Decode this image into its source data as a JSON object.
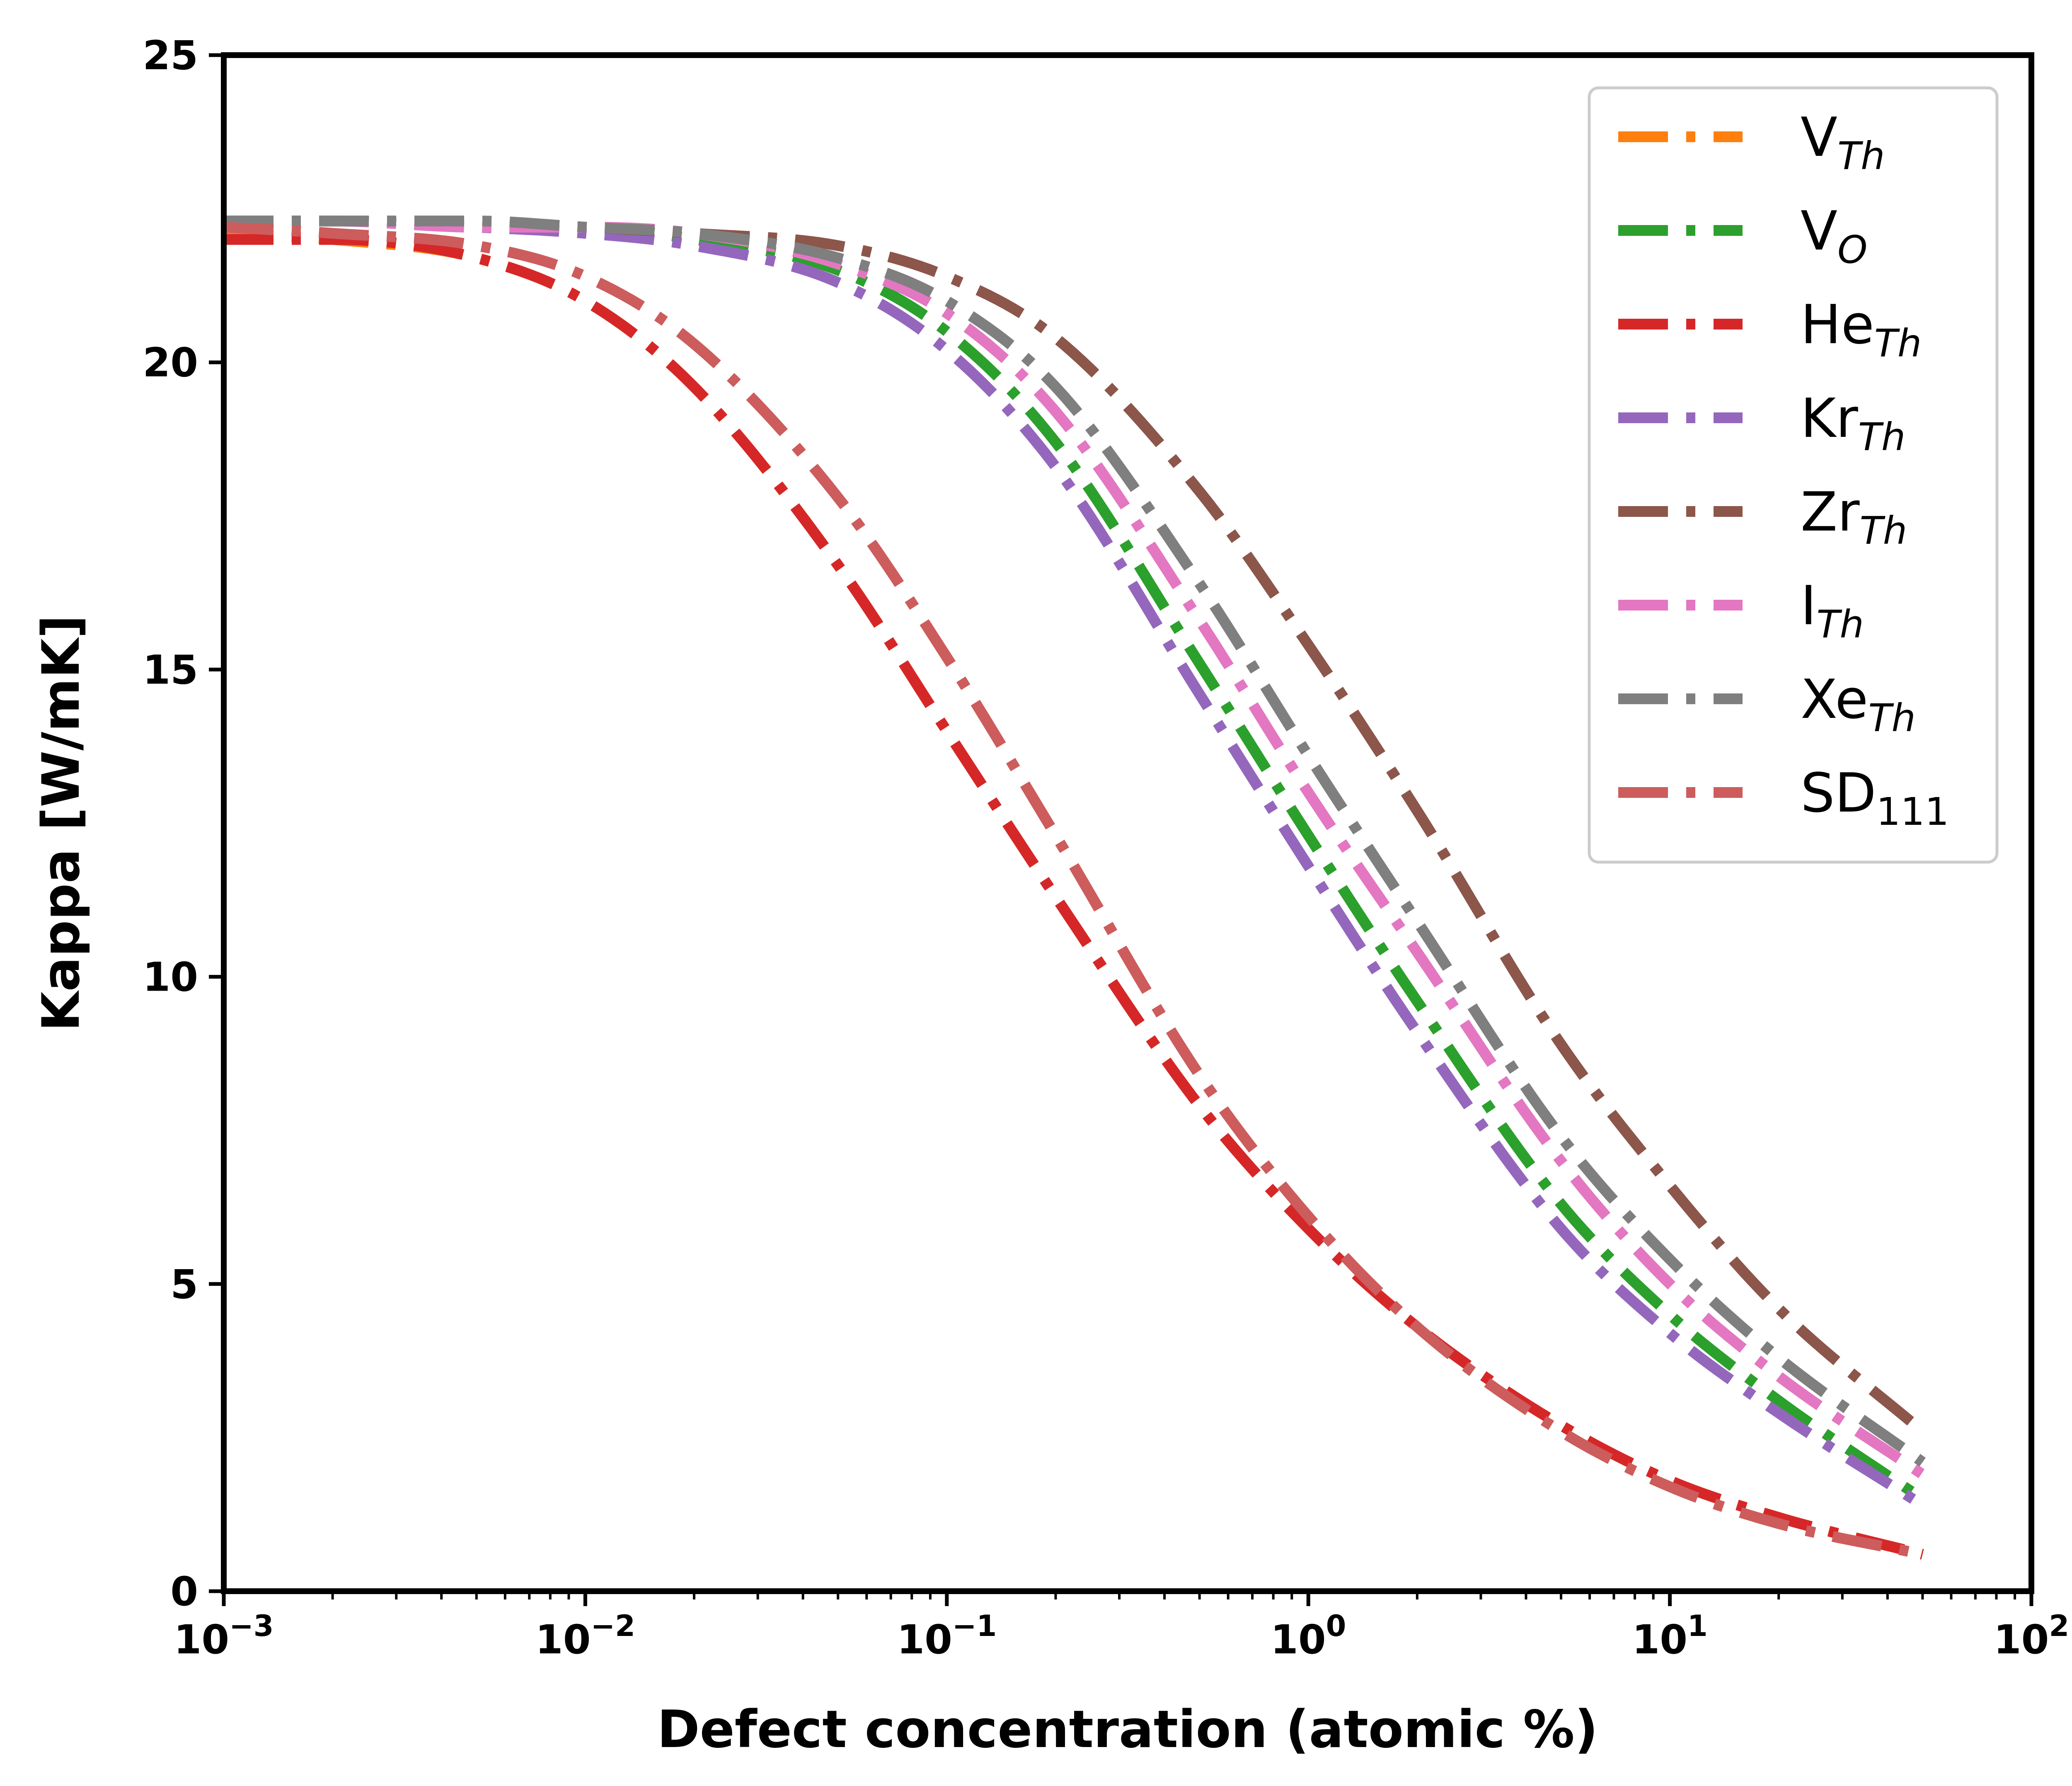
{
  "chart_data": {
    "type": "line",
    "xlabel": "Defect concentration (atomic %)",
    "ylabel": "Kappa [W/mK]",
    "xscale": "log",
    "xlim": [
      0.001,
      100
    ],
    "ylim": [
      0,
      25
    ],
    "x_ticks": [
      {
        "value": 0.001,
        "base": "10",
        "exp": "−3"
      },
      {
        "value": 0.01,
        "base": "10",
        "exp": "−2"
      },
      {
        "value": 0.1,
        "base": "10",
        "exp": "−1"
      },
      {
        "value": 1,
        "base": "10",
        "exp": "0"
      },
      {
        "value": 10,
        "base": "10",
        "exp": "1"
      },
      {
        "value": 100,
        "base": "10",
        "exp": "2"
      }
    ],
    "y_ticks": [
      {
        "value": 0,
        "label": "0"
      },
      {
        "value": 5,
        "label": "5"
      },
      {
        "value": 10,
        "label": "10"
      },
      {
        "value": 15,
        "label": "15"
      },
      {
        "value": 20,
        "label": "20"
      },
      {
        "value": 25,
        "label": "25"
      }
    ],
    "grid": false,
    "legend_position": "top-right",
    "line_style": "dash-dot",
    "x": [
      0.001,
      0.002,
      0.005,
      0.01,
      0.02,
      0.05,
      0.1,
      0.2,
      0.5,
      1,
      2,
      5,
      10,
      20,
      50
    ],
    "series": [
      {
        "name": "V",
        "sub": "Th",
        "sub_italic": true,
        "color": "#ff7f0e",
        "values": [
          22.1,
          22.0,
          21.7,
          21.0,
          19.6,
          16.7,
          14.0,
          11.3,
          7.9,
          5.9,
          4.3,
          2.7,
          1.8,
          1.2,
          0.6
        ]
      },
      {
        "name": "V",
        "sub": "O",
        "sub_italic": true,
        "color": "#2ca02c",
        "values": [
          22.3,
          22.3,
          22.2,
          22.2,
          22.0,
          21.5,
          20.5,
          18.7,
          15.1,
          12.3,
          9.6,
          6.3,
          4.5,
          3.1,
          1.5
        ]
      },
      {
        "name": "He",
        "sub": "Th",
        "sub_italic": true,
        "color": "#d62728",
        "values": [
          22.0,
          22.0,
          21.7,
          21.0,
          19.6,
          16.7,
          14.0,
          11.3,
          7.9,
          5.9,
          4.3,
          2.7,
          1.8,
          1.2,
          0.6
        ]
      },
      {
        "name": "Kr",
        "sub": "Th",
        "sub_italic": true,
        "color": "#9467bd",
        "values": [
          22.3,
          22.3,
          22.2,
          22.1,
          21.9,
          21.3,
          20.2,
          18.3,
          14.6,
          11.8,
          9.1,
          5.9,
          4.2,
          2.9,
          1.4
        ]
      },
      {
        "name": "Zr",
        "sub": "Th",
        "sub_italic": true,
        "color": "#8c564b",
        "values": [
          22.3,
          22.3,
          22.3,
          22.2,
          22.1,
          21.9,
          21.4,
          20.4,
          17.9,
          15.4,
          12.7,
          8.9,
          6.6,
          4.6,
          2.6
        ]
      },
      {
        "name": "I",
        "sub": "Th",
        "sub_italic": true,
        "color": "#e377c2",
        "values": [
          22.3,
          22.3,
          22.2,
          22.2,
          22.1,
          21.6,
          20.8,
          19.2,
          15.8,
          13.0,
          10.4,
          7.0,
          5.0,
          3.5,
          1.9
        ]
      },
      {
        "name": "Xe",
        "sub": "Th",
        "sub_italic": true,
        "color": "#7f7f7f",
        "values": [
          22.3,
          22.3,
          22.3,
          22.2,
          22.1,
          21.7,
          21.0,
          19.6,
          16.4,
          13.6,
          10.9,
          7.4,
          5.4,
          3.8,
          2.1
        ]
      },
      {
        "name": "SD",
        "sub": "111",
        "sub_italic": false,
        "color": "#cd5c5c",
        "values": [
          22.2,
          22.1,
          21.9,
          21.4,
          20.3,
          17.8,
          15.2,
          12.3,
          8.4,
          6.1,
          4.3,
          2.6,
          1.7,
          1.1,
          0.6
        ]
      }
    ]
  }
}
